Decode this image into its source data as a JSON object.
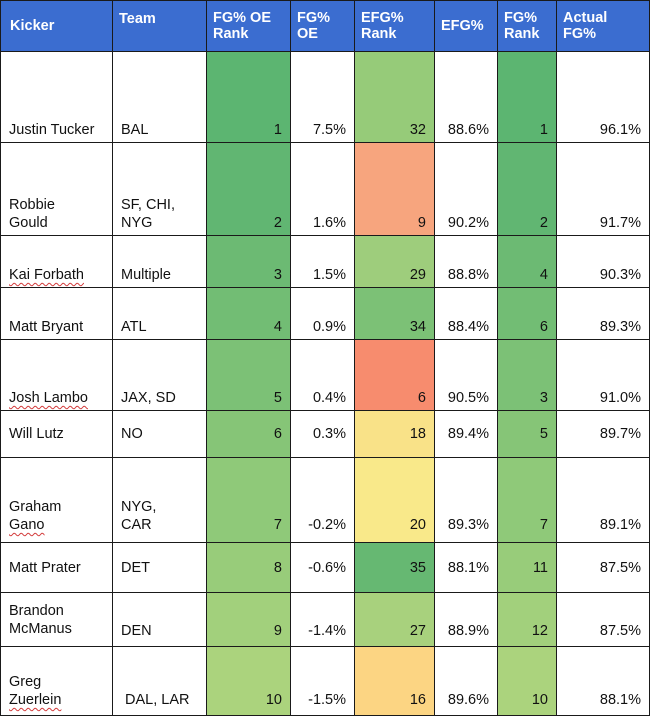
{
  "table": {
    "headers": {
      "kicker": "Kicker",
      "team": "Team",
      "fgoe_rank": [
        "FG% OE",
        "Rank"
      ],
      "fgoe": [
        "FG%",
        "OE"
      ],
      "efg_rank": [
        "EFG%",
        "Rank"
      ],
      "efg": "EFG%",
      "fg_rank": [
        "FG%",
        "Rank"
      ],
      "actual_fg": [
        "Actual",
        "FG%"
      ]
    },
    "colors": {
      "header_bg": "#3b6dd0",
      "header_text": "#ffffff",
      "fgoe_rank": [
        "#5cb571",
        "#61b672",
        "#6cba73",
        "#72bd74",
        "#7cc176",
        "#86c577",
        "#8fc979",
        "#98cc7a",
        "#a2d07c",
        "#abd37d"
      ],
      "efg_rank": [
        "#96cb79",
        "#f7a57e",
        "#9ecd7c",
        "#7cc176",
        "#f78c6e",
        "#f9e288",
        "#f9e98a",
        "#66b872",
        "#a8d17d",
        "#fcd583"
      ],
      "fg_rank": [
        "#5cb571",
        "#61b672",
        "#6cba73",
        "#72bd74",
        "#7cc176",
        "#86c577",
        "#8fc979",
        "#98cc7a",
        "#a2d07c",
        "#abd37d"
      ]
    },
    "rows": [
      {
        "kicker": [
          "Justin Tucker"
        ],
        "team": [
          "BAL"
        ],
        "fgoe_rank": "1",
        "fgoe": "7.5%",
        "efg_rank": "32",
        "efg": "88.6%",
        "fg_rank": "1",
        "actual_fg": "96.1%"
      },
      {
        "kicker": [
          "Robbie",
          "Gould"
        ],
        "team": [
          "SF, CHI,",
          "NYG"
        ],
        "fgoe_rank": "2",
        "fgoe": "1.6%",
        "efg_rank": "9",
        "efg": "90.2%",
        "fg_rank": "2",
        "actual_fg": "91.7%"
      },
      {
        "kicker": [
          "Kai Forbath"
        ],
        "team": [
          "Multiple"
        ],
        "fgoe_rank": "3",
        "fgoe": "1.5%",
        "efg_rank": "29",
        "efg": "88.8%",
        "fg_rank": "4",
        "actual_fg": "90.3%"
      },
      {
        "kicker": [
          "Matt Bryant"
        ],
        "team": [
          "ATL"
        ],
        "fgoe_rank": "4",
        "fgoe": "0.9%",
        "efg_rank": "34",
        "efg": "88.4%",
        "fg_rank": "6",
        "actual_fg": "89.3%"
      },
      {
        "kicker": [
          "Josh Lambo"
        ],
        "team": [
          "JAX, SD"
        ],
        "fgoe_rank": "5",
        "fgoe": "0.4%",
        "efg_rank": "6",
        "efg": "90.5%",
        "fg_rank": "3",
        "actual_fg": "91.0%"
      },
      {
        "kicker": [
          "Will Lutz"
        ],
        "team": [
          "NO"
        ],
        "fgoe_rank": "6",
        "fgoe": "0.3%",
        "efg_rank": "18",
        "efg": "89.4%",
        "fg_rank": "5",
        "actual_fg": "89.7%"
      },
      {
        "kicker": [
          "Graham",
          "Gano"
        ],
        "team": [
          "NYG,",
          "CAR"
        ],
        "fgoe_rank": "7",
        "fgoe": "-0.2%",
        "efg_rank": "20",
        "efg": "89.3%",
        "fg_rank": "7",
        "actual_fg": "89.1%"
      },
      {
        "kicker": [
          "Matt Prater"
        ],
        "team": [
          "DET"
        ],
        "fgoe_rank": "8",
        "fgoe": "-0.6%",
        "efg_rank": "35",
        "efg": "88.1%",
        "fg_rank": "11",
        "actual_fg": "87.5%"
      },
      {
        "kicker": [
          "Brandon",
          "McManus"
        ],
        "team": [
          "DEN"
        ],
        "fgoe_rank": "9",
        "fgoe": "-1.4%",
        "efg_rank": "27",
        "efg": "88.9%",
        "fg_rank": "12",
        "actual_fg": "87.5%"
      },
      {
        "kicker": [
          "Greg",
          "Zuerlein"
        ],
        "team": [
          "DAL, LAR"
        ],
        "fgoe_rank": "10",
        "fgoe": "-1.5%",
        "efg_rank": "16",
        "efg": "89.6%",
        "fg_rank": "10",
        "actual_fg": "88.1%"
      }
    ]
  }
}
